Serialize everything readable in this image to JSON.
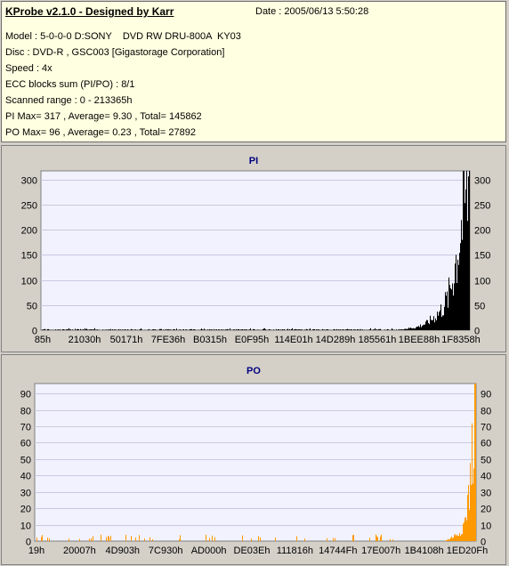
{
  "header": {
    "app_title": "KProbe v2.1.0 - Designed by Karr",
    "date": "Date : 2005/06/13 5:50:28",
    "lines": [
      "Model : 5-0-0-0 D:SONY    DVD RW DRU-800A  KY03",
      "Disc : DVD-R , GSC003 [Gigastorage Corporation]",
      "Speed : 4x",
      "ECC blocks sum (PI/PO) : 8/1",
      "Scanned range : 0 - 213365h",
      "PI Max= 317 , Average= 9.30 , Total= 145862",
      "PO Max= 96 , Average= 0.23 , Total= 27892"
    ]
  },
  "chart_data": [
    {
      "type": "bar",
      "title": "PI",
      "color": "#000000",
      "ylim": [
        0,
        317
      ],
      "yticks": [
        0,
        50,
        100,
        150,
        200,
        250,
        300
      ],
      "xtick_labels": [
        "85h",
        "21030h",
        "50171h",
        "7FE36h",
        "B0315h",
        "E0F95h",
        "114E01h",
        "14D289h",
        "185561h",
        "1BEE88h",
        "1F8358h"
      ],
      "profile": [
        [
          0.0,
          2
        ],
        [
          0.84,
          2
        ],
        [
          0.875,
          6
        ],
        [
          0.9,
          15
        ],
        [
          0.92,
          30
        ],
        [
          0.935,
          45
        ],
        [
          0.95,
          70
        ],
        [
          0.96,
          110
        ],
        [
          0.97,
          160
        ],
        [
          0.98,
          220
        ],
        [
          0.99,
          280
        ],
        [
          1.0,
          317
        ]
      ]
    },
    {
      "type": "bar",
      "title": "PO",
      "color": "#ff9900",
      "ylim": [
        0,
        96
      ],
      "yticks": [
        0,
        10,
        20,
        30,
        40,
        50,
        60,
        70,
        80,
        90
      ],
      "xtick_labels": [
        "19h",
        "20007h",
        "4D903h",
        "7C930h",
        "AD000h",
        "DE03Eh",
        "111816h",
        "14744Fh",
        "17E007h",
        "1B4108h",
        "1ED20Fh"
      ],
      "profile": [
        [
          0.0,
          0
        ],
        [
          0.93,
          0
        ],
        [
          0.95,
          3
        ],
        [
          0.965,
          6
        ],
        [
          0.975,
          12
        ],
        [
          0.985,
          30
        ],
        [
          0.993,
          60
        ],
        [
          1.0,
          96
        ]
      ]
    }
  ]
}
